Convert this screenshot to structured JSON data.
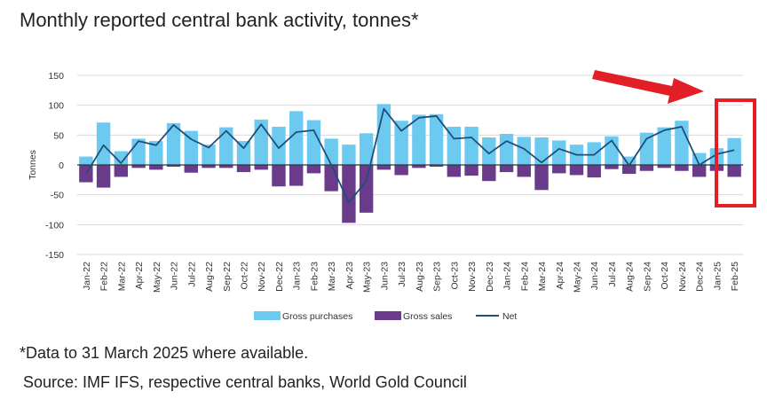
{
  "title": "Monthly reported central bank activity, tonnes*",
  "footnote": "*Data to 31 March 2025 where available.",
  "source": "Source: IMF IFS, respective central banks, World Gold Council",
  "colors": {
    "purchases": "#6ccaf1",
    "sales": "#6a3b8b",
    "net": "#1f4e79",
    "annotation": "#e21f26"
  },
  "chart_data": {
    "type": "bar",
    "ylabel": "Tonnes",
    "xlabel": "",
    "ylim": [
      -150,
      150
    ],
    "yticks": [
      150,
      100,
      50,
      0,
      -50,
      -100,
      -150
    ],
    "legend_position": "bottom",
    "categories": [
      "Jan-22",
      "Feb-22",
      "Mar-22",
      "Apr-22",
      "May-22",
      "Jun-22",
      "Jul-22",
      "Aug-22",
      "Sep-22",
      "Oct-22",
      "Nov-22",
      "Dec-22",
      "Jan-23",
      "Feb-23",
      "Mar-23",
      "Apr-23",
      "May-23",
      "Jun-23",
      "Jul-23",
      "Aug-23",
      "Sep-23",
      "Oct-23",
      "Nov-23",
      "Dec-23",
      "Jan-24",
      "Feb-24",
      "Mar-24",
      "Apr-24",
      "May-24",
      "Jun-24",
      "Jul-24",
      "Aug-24",
      "Sep-24",
      "Oct-24",
      "Nov-24",
      "Dec-24",
      "Jan-25",
      "Feb-25"
    ],
    "series": [
      {
        "name": "Gross purchases",
        "kind": "bar",
        "values": [
          14,
          71,
          23,
          44,
          40,
          70,
          57,
          34,
          63,
          40,
          76,
          64,
          90,
          75,
          44,
          34,
          53,
          102,
          74,
          84,
          85,
          64,
          64,
          46,
          52,
          47,
          46,
          41,
          34,
          38,
          48,
          14,
          54,
          63,
          74,
          20,
          28,
          45
        ]
      },
      {
        "name": "Gross sales",
        "kind": "bar",
        "values": [
          -29,
          -38,
          -20,
          -5,
          -8,
          -3,
          -13,
          -5,
          -5,
          -12,
          -8,
          -36,
          -35,
          -14,
          -44,
          -97,
          -80,
          -8,
          -17,
          -5,
          -3,
          -20,
          -18,
          -27,
          -12,
          -20,
          -42,
          -14,
          -17,
          -21,
          -7,
          -15,
          -10,
          -5,
          -10,
          -20,
          -10,
          -20
        ]
      },
      {
        "name": "Net",
        "kind": "line",
        "values": [
          -15,
          33,
          3,
          40,
          33,
          67,
          43,
          29,
          57,
          28,
          68,
          28,
          55,
          58,
          0,
          -63,
          -27,
          94,
          57,
          79,
          82,
          44,
          46,
          19,
          40,
          27,
          4,
          27,
          17,
          17,
          41,
          -1,
          44,
          58,
          64,
          0,
          18,
          25
        ]
      }
    ],
    "annotations": [
      {
        "type": "arrow",
        "color": "red",
        "target": "Feb-25"
      },
      {
        "type": "box",
        "color": "red",
        "target": "Feb-25"
      }
    ]
  }
}
